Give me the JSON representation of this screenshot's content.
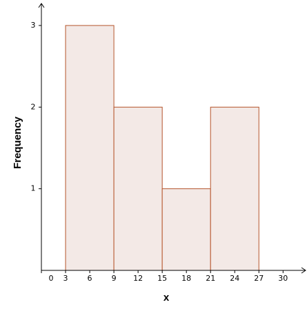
{
  "chart_data": {
    "type": "histogram",
    "bins": [
      3,
      9,
      15,
      21,
      27
    ],
    "values": [
      3,
      2,
      1,
      2
    ],
    "color": "#f3e9e6",
    "edge_color": "#b4532a",
    "xlabel": "x",
    "ylabel": "Frequency",
    "xlim": [
      0,
      32.8
    ],
    "ylim": [
      0,
      3.27
    ],
    "xticks": [
      0,
      3,
      6,
      9,
      12,
      15,
      18,
      21,
      24,
      27,
      30
    ],
    "yticks": [
      1,
      2,
      3
    ]
  }
}
